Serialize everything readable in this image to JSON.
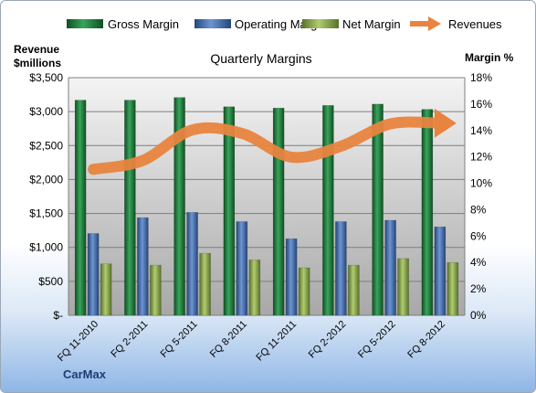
{
  "chart_data": {
    "type": "bar",
    "title": "Quarterly Margins",
    "company": "CarMax",
    "y_left_label_line1": "Revenue",
    "y_left_label_line2": "$millions",
    "y_right_label": "Margin %",
    "ylim_left": [
      0,
      3500
    ],
    "ylim_right": [
      0,
      18
    ],
    "left_ticks": [
      "$-",
      "$500",
      "$1,000",
      "$1,500",
      "$2,000",
      "$2,500",
      "$3,000",
      "$3,500"
    ],
    "left_tick_values": [
      0,
      500,
      1000,
      1500,
      2000,
      2500,
      3000,
      3500
    ],
    "right_ticks": [
      "0%",
      "2%",
      "4%",
      "6%",
      "8%",
      "10%",
      "12%",
      "14%",
      "16%",
      "18%"
    ],
    "right_tick_values": [
      0,
      2,
      4,
      6,
      8,
      10,
      12,
      14,
      16,
      18
    ],
    "categories": [
      "FQ 11-2010",
      "FQ 2-2011",
      "FQ 5-2011",
      "FQ 8-2011",
      "FQ 11-2011",
      "FQ 2-2012",
      "FQ 5-2012",
      "FQ 8-2012"
    ],
    "series": [
      {
        "name": "Gross Margin",
        "axis": "right",
        "kind": "bar",
        "color": "#1e7a3e",
        "values": [
          16.3,
          16.3,
          16.5,
          15.8,
          15.7,
          15.9,
          16.0,
          15.6
        ]
      },
      {
        "name": "Operating Margin",
        "axis": "right",
        "kind": "bar",
        "color": "#3f6cb0",
        "values": [
          6.2,
          7.4,
          7.8,
          7.1,
          5.8,
          7.1,
          7.2,
          6.7
        ]
      },
      {
        "name": "Net Margin",
        "axis": "right",
        "kind": "bar",
        "color": "#7f9f3e",
        "values": [
          3.9,
          3.8,
          4.7,
          4.2,
          3.6,
          3.8,
          4.3,
          4.0
        ]
      },
      {
        "name": "Revenues",
        "axis": "left",
        "kind": "line",
        "color": "#e8843f",
        "values": [
          2150,
          2280,
          2730,
          2680,
          2330,
          2490,
          2820,
          2830
        ]
      }
    ]
  }
}
